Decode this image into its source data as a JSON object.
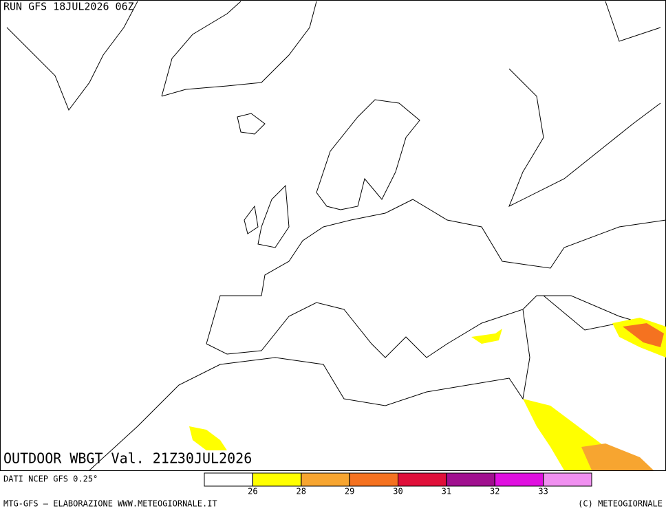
{
  "header": {
    "run": "RUN GFS 18JUL2026 06Z"
  },
  "map": {
    "title": "OUTDOOR WBGT Val. 21Z30JUL2026"
  },
  "legend": {
    "source": "DATI NCEP GFS 0.25°",
    "colors": [
      "#ffffff",
      "#ffff00",
      "#f7a530",
      "#f57220",
      "#e0103a",
      "#a0108f",
      "#e010e0",
      "#f090f0"
    ],
    "ticks": [
      26,
      28,
      29,
      30,
      31,
      32,
      33
    ]
  },
  "footer": {
    "left": "MTG-GFS — ELABORAZIONE WWW.METEOGIORNALE.IT",
    "right": "(C) METEOGIORNALE"
  }
}
